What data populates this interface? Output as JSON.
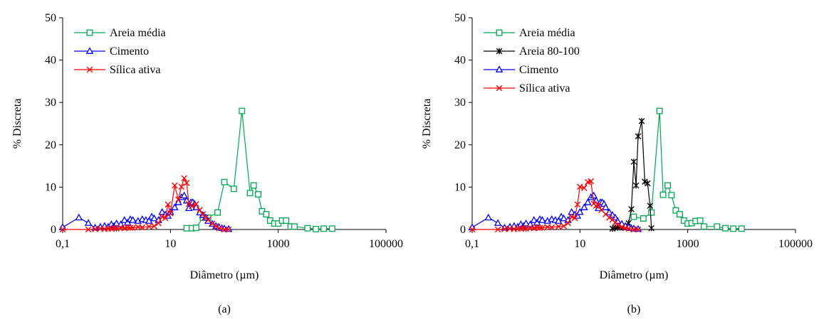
{
  "panels": [
    {
      "caption": "(a)",
      "chart_data": {
        "type": "scatter",
        "xlabel": "Diâmetro (µm)",
        "ylabel": "% Discreta",
        "xscale": "log",
        "xlim": [
          0.1,
          100000
        ],
        "ylim": [
          0,
          50
        ],
        "xticks": [
          0.1,
          10,
          1000,
          100000
        ],
        "xtick_labels": [
          "0,1",
          "10",
          "1000",
          "100000"
        ],
        "yticks": [
          0,
          10,
          20,
          30,
          40,
          50
        ],
        "ytick_labels": [
          "0",
          "10",
          "20",
          "30",
          "40",
          "50"
        ],
        "grid": false,
        "legend": "top-left",
        "series": [
          {
            "name": "Areia média",
            "color": "#00a651",
            "marker": "square",
            "x": [
              20,
              25,
              30,
              40,
              50,
              75,
              100,
              150,
              212,
              300,
              350,
              425,
              500,
              600,
              710,
              850,
              1000,
              1180,
              1400,
              1700,
              2000,
              3500,
              5000,
              7000,
              10000
            ],
            "y": [
              0.3,
              0.3,
              0.4,
              2.8,
              2.8,
              4.0,
              11.2,
              9.6,
              28.0,
              8.6,
              10.4,
              8.3,
              4.3,
              3.6,
              2.1,
              1.4,
              1.4,
              2.1,
              2.1,
              0.7,
              0.7,
              0.3,
              0.1,
              0.2,
              0.2
            ]
          },
          {
            "name": "Cimento",
            "color": "#0000ff",
            "marker": "triangle",
            "x": [
              0.1,
              0.2,
              0.3,
              0.4,
              0.5,
              0.6,
              0.7,
              0.8,
              0.9,
              1.0,
              1.2,
              1.4,
              1.6,
              1.8,
              2.0,
              2.5,
              3.0,
              3.5,
              4.0,
              4.5,
              5.0,
              6.0,
              7.0,
              8.0,
              9.0,
              10,
              12,
              14,
              16,
              18,
              20,
              22,
              24,
              26,
              28,
              30,
              35,
              40,
              45,
              50,
              60,
              70,
              80,
              90,
              100,
              120
            ],
            "y": [
              0.5,
              2.8,
              1.5,
              0.4,
              0.6,
              0.8,
              0.6,
              1.2,
              0.8,
              1.4,
              1.2,
              2.2,
              1.6,
              2.4,
              2.2,
              2.0,
              2.4,
              2.2,
              2.0,
              3.0,
              2.6,
              2.2,
              4.1,
              3.5,
              3.2,
              4.1,
              5.2,
              6.4,
              7.6,
              8.0,
              6.8,
              5.0,
              6.4,
              6.4,
              6.0,
              5.2,
              4.0,
              3.4,
              2.8,
              2.0,
              1.3,
              0.8,
              0.5,
              0.3,
              0.2,
              0.1
            ]
          },
          {
            "name": "Sílica ativa",
            "color": "#ff0000",
            "marker": "x",
            "x": [
              0.1,
              0.3,
              0.4,
              0.5,
              0.6,
              0.7,
              0.8,
              0.9,
              1.0,
              1.2,
              1.4,
              1.6,
              1.8,
              2.0,
              2.5,
              3.0,
              4.0,
              5.0,
              6.0,
              7.0,
              8.0,
              9.0,
              10,
              12,
              14,
              16,
              18,
              20,
              22,
              25,
              30,
              35,
              40,
              45,
              50,
              60,
              70,
              80,
              100,
              120
            ],
            "y": [
              0.0,
              0.0,
              0.1,
              0.2,
              0.1,
              0.2,
              0.2,
              0.4,
              0.2,
              0.4,
              0.3,
              0.5,
              0.4,
              0.4,
              0.6,
              0.5,
              0.7,
              0.8,
              1.5,
              3.0,
              2.7,
              5.9,
              3.8,
              10.4,
              7.1,
              10.1,
              12.1,
              11.0,
              6.0,
              5.5,
              6.0,
              4.6,
              3.6,
              2.8,
              2.3,
              1.4,
              0.8,
              0.3,
              0.0,
              0.0
            ]
          }
        ]
      }
    },
    {
      "caption": "(b)",
      "chart_data": {
        "type": "scatter",
        "xlabel": "Diâmetro (µm)",
        "ylabel": "% Discreta",
        "xscale": "log",
        "xlim": [
          0.1,
          100000
        ],
        "ylim": [
          0,
          50
        ],
        "xticks": [
          0.1,
          10,
          1000,
          100000
        ],
        "xtick_labels": [
          "0,1",
          "10",
          "1000",
          "100000"
        ],
        "yticks": [
          0,
          10,
          20,
          30,
          40,
          50
        ],
        "ytick_labels": [
          "0",
          "10",
          "20",
          "30",
          "40",
          "50"
        ],
        "grid": false,
        "legend": "top-left",
        "series": [
          {
            "name": "Areia média",
            "color": "#00a651",
            "marker": "square",
            "x": [
              100,
              150,
              212,
              300,
              350,
              425,
              500,
              600,
              710,
              850,
              1000,
              1180,
              1400,
              1700,
              2000,
              3500,
              5000,
              7000,
              10000
            ],
            "y": [
              3.0,
              2.6,
              4.0,
              28.0,
              8.2,
              10.4,
              8.1,
              4.5,
              3.6,
              2.1,
              1.4,
              1.5,
              2.0,
              2.1,
              0.7,
              0.7,
              0.3,
              0.2,
              0.2
            ]
          },
          {
            "name": "Areia 80-100",
            "color": "#000000",
            "marker": "star",
            "x": [
              40,
              45,
              50,
              55,
              60,
              70,
              80,
              90,
              100,
              110,
              120,
              140,
              160,
              180,
              200,
              212
            ],
            "y": [
              0.2,
              0.5,
              0.4,
              0.6,
              0.5,
              0.9,
              1.5,
              4.8,
              16.0,
              10.4,
              22.0,
              25.6,
              11.3,
              10.9,
              5.6,
              0.3
            ]
          },
          {
            "name": "Cimento",
            "color": "#0000ff",
            "marker": "triangle",
            "x": [
              0.1,
              0.2,
              0.3,
              0.4,
              0.5,
              0.6,
              0.7,
              0.8,
              0.9,
              1.0,
              1.2,
              1.4,
              1.6,
              1.8,
              2.0,
              2.5,
              3.0,
              3.5,
              4.0,
              4.5,
              5.0,
              6.0,
              7.0,
              8.0,
              9.0,
              10,
              12,
              14,
              16,
              18,
              20,
              22,
              24,
              26,
              28,
              30,
              35,
              40,
              45,
              50,
              60,
              70,
              80,
              90,
              100,
              120
            ],
            "y": [
              0.5,
              2.8,
              1.5,
              0.4,
              0.6,
              0.8,
              0.6,
              1.2,
              0.8,
              1.4,
              1.2,
              2.2,
              1.6,
              2.4,
              2.2,
              2.0,
              2.4,
              2.2,
              2.0,
              3.0,
              2.6,
              2.2,
              4.1,
              3.5,
              3.2,
              4.1,
              5.2,
              6.4,
              7.6,
              8.0,
              6.8,
              5.0,
              6.4,
              6.4,
              6.0,
              5.2,
              4.0,
              3.4,
              2.8,
              2.0,
              1.3,
              0.8,
              0.5,
              0.3,
              0.2,
              0.1
            ]
          },
          {
            "name": "Sílica ativa",
            "color": "#ff0000",
            "marker": "x",
            "x": [
              0.1,
              0.3,
              0.4,
              0.5,
              0.6,
              0.7,
              0.8,
              0.9,
              1.0,
              1.2,
              1.4,
              1.6,
              1.8,
              2.0,
              2.5,
              3.0,
              4.0,
              5.0,
              6.0,
              7.0,
              8.0,
              9.0,
              10,
              12,
              14,
              16,
              18,
              20,
              22,
              25,
              30,
              35,
              40,
              45,
              50,
              60,
              70,
              80,
              100,
              120
            ],
            "y": [
              0.0,
              0.0,
              0.1,
              0.2,
              0.1,
              0.2,
              0.2,
              0.4,
              0.2,
              0.4,
              0.3,
              0.5,
              0.4,
              0.4,
              0.6,
              0.5,
              0.7,
              0.8,
              1.5,
              3.0,
              2.7,
              5.9,
              10.1,
              9.8,
              11.2,
              11.4,
              6.1,
              5.6,
              5.8,
              4.6,
              3.6,
              2.8,
              2.3,
              1.6,
              1.1,
              0.6,
              0.3,
              0.2,
              0.0,
              0.0
            ]
          }
        ]
      }
    }
  ]
}
